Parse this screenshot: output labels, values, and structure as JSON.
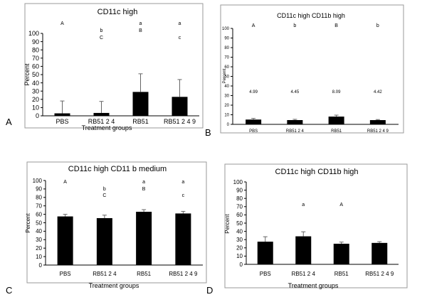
{
  "figure": {
    "panel_letters": [
      "A",
      "B",
      "C",
      "D"
    ]
  },
  "chart_data": [
    {
      "type": "bar",
      "panel": "A",
      "title": "CD11c high",
      "xlabel": "Treatment groups",
      "ylabel": "Percent",
      "ylim": [
        0,
        100
      ],
      "yticks": [
        0,
        10,
        20,
        30,
        40,
        50,
        60,
        70,
        80,
        90,
        100
      ],
      "categories": [
        "PBS",
        "RB51 2 4",
        "RB51",
        "RB51 2 4 9"
      ],
      "values": [
        3,
        3.5,
        29,
        23
      ],
      "errors": [
        15,
        14,
        22,
        21
      ],
      "value_labels": [],
      "letters_top": [
        "A",
        "",
        "a",
        "a"
      ],
      "letters_mid": [
        "",
        "b",
        "B",
        ""
      ],
      "letters_low": [
        "",
        "C",
        "",
        "c"
      ]
    },
    {
      "type": "bar",
      "panel": "B",
      "title": "CD11c high CD11b high",
      "xlabel": "",
      "ylabel": "Percent",
      "ylim": [
        0,
        100
      ],
      "yticks": [
        0,
        10,
        20,
        30,
        40,
        50,
        60,
        70,
        80,
        90,
        100
      ],
      "categories": [
        "PBS",
        "RB51 2 4",
        "RB51",
        "RB51 2 4 9"
      ],
      "values": [
        4.99,
        4.45,
        8.09,
        4.42
      ],
      "errors": [
        1.2,
        0.8,
        1.5,
        0.6
      ],
      "value_labels": [
        "4.99",
        "4.45",
        "8.09",
        "4.42"
      ],
      "letters_top": [
        "A",
        "b",
        "B",
        "b"
      ],
      "letters_mid": [],
      "letters_low": []
    },
    {
      "type": "bar",
      "panel": "C",
      "title": "CD11c high CD11 b medium",
      "xlabel": "Treatment groups",
      "ylabel": "Percent",
      "ylim": [
        0,
        100
      ],
      "yticks": [
        0,
        10,
        20,
        30,
        40,
        50,
        60,
        70,
        80,
        90,
        100
      ],
      "categories": [
        "PBS",
        "RB51 2 4",
        "RB51",
        "RB51 2 4 9"
      ],
      "values": [
        57.5,
        55.5,
        63,
        61
      ],
      "errors": [
        2.5,
        3.5,
        2.5,
        2.5
      ],
      "value_labels": [],
      "letters_top": [
        "A",
        "",
        "a",
        "a"
      ],
      "letters_mid": [
        "",
        "b",
        "B",
        ""
      ],
      "letters_low": [
        "",
        "C",
        "",
        "c"
      ]
    },
    {
      "type": "bar",
      "panel": "D",
      "title": "CD11c high CD11b high",
      "xlabel": "Treatment groups",
      "ylabel": "Percent",
      "ylim": [
        0,
        100
      ],
      "yticks": [
        0,
        10,
        20,
        30,
        40,
        50,
        60,
        70,
        80,
        90,
        100
      ],
      "categories": [
        "PBS",
        "RB51 2 4",
        "RB51",
        "RB51 2 4 9"
      ],
      "values": [
        27.5,
        34,
        25,
        26
      ],
      "errors": [
        6,
        5.5,
        2,
        1.5
      ],
      "value_labels": [],
      "letters_top": [
        "",
        "a",
        "A",
        ""
      ],
      "letters_mid": [],
      "letters_low": []
    }
  ]
}
